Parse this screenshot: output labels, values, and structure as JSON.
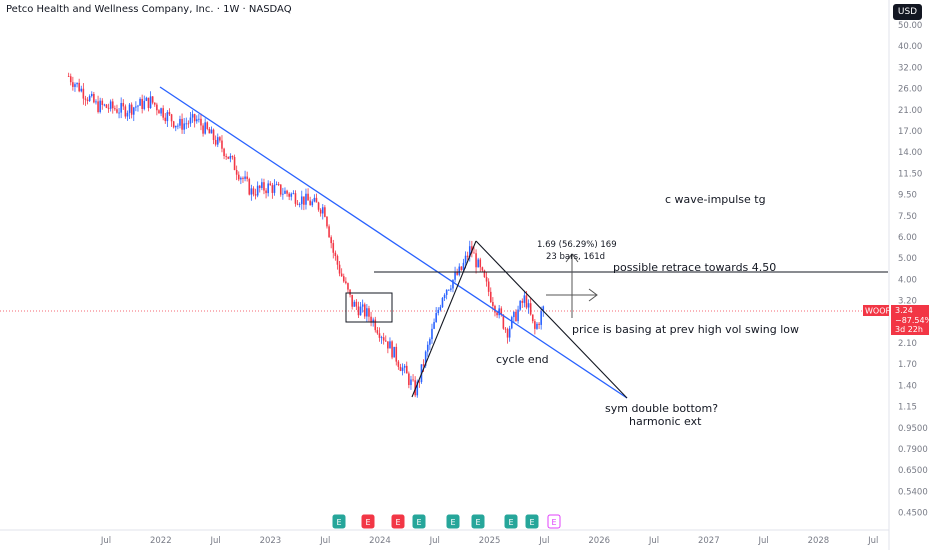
{
  "header": {
    "title": "Petco Health and Wellness Company, Inc. · 1W · NASDAQ",
    "currency": "USD"
  },
  "price_tag": {
    "symbol": "WOOF",
    "price": "3.24",
    "change": "−87.54%",
    "countdown": "3d 22h",
    "color": "#f23645"
  },
  "annotations": {
    "wave": "c wave-impulse tg",
    "measure_1": "1.69 (56.29%) 169",
    "measure_2": "23 bars, 161d",
    "retrace": "possible retrace towards 4.50",
    "basing": "price is basing at prev high vol swing low",
    "cycle_end": "cycle end",
    "double_bottom": "sym double bottom?",
    "harmonic": "harmonic ext"
  },
  "colors": {
    "up": "#2962ff",
    "down": "#f23645",
    "trendline": "#2962ff",
    "drawing": "#131722",
    "earnings_reported": "#26a69a",
    "earnings_missed": "#f23645",
    "earnings_upcoming": "#e040fb"
  },
  "chart_data": {
    "type": "candlestick",
    "scale": "log",
    "y_ticks": [
      "50.00",
      "40.00",
      "32.00",
      "26.00",
      "21.00",
      "17.00",
      "14.00",
      "11.50",
      "9.50",
      "7.50",
      "6.00",
      "5.00",
      "4.00",
      "3.20",
      "2.60",
      "2.10",
      "1.70",
      "1.40",
      "1.15",
      "0.9500",
      "0.7900",
      "0.6500",
      "0.5400",
      "0.4500"
    ],
    "x_ticks": [
      "Jul",
      "2022",
      "Jul",
      "2023",
      "Jul",
      "2024",
      "Jul",
      "2025",
      "Jul",
      "2026",
      "Jul",
      "2027",
      "Jul",
      "2028",
      "Jul"
    ],
    "earnings_markers": [
      "E",
      "E",
      "E",
      "E",
      "E",
      "E",
      "E",
      "E",
      "E"
    ],
    "close_series_approx": [
      {
        "x": "2021-03",
        "y": 30.5
      },
      {
        "x": "2021-06",
        "y": 23
      },
      {
        "x": "2021-09",
        "y": 22
      },
      {
        "x": "2021-12",
        "y": 24
      },
      {
        "x": "2022-03",
        "y": 19
      },
      {
        "x": "2022-05",
        "y": 20
      },
      {
        "x": "2022-08",
        "y": 15
      },
      {
        "x": "2022-11",
        "y": 10
      },
      {
        "x": "2023-01",
        "y": 10.5
      },
      {
        "x": "2023-04",
        "y": 9.5
      },
      {
        "x": "2023-07",
        "y": 8.5
      },
      {
        "x": "2023-08",
        "y": 5.5
      },
      {
        "x": "2023-10",
        "y": 3.4
      },
      {
        "x": "2023-12",
        "y": 3.0
      },
      {
        "x": "2024-02",
        "y": 2.3
      },
      {
        "x": "2024-05",
        "y": 1.45
      },
      {
        "x": "2024-08",
        "y": 3.8
      },
      {
        "x": "2024-10",
        "y": 4.7
      },
      {
        "x": "2024-11",
        "y": 5.8
      },
      {
        "x": "2025-01",
        "y": 3.8
      },
      {
        "x": "2025-03",
        "y": 2.6
      },
      {
        "x": "2025-05",
        "y": 3.6
      },
      {
        "x": "2025-06",
        "y": 2.6
      },
      {
        "x": "2025-07",
        "y": 3.24
      }
    ]
  }
}
